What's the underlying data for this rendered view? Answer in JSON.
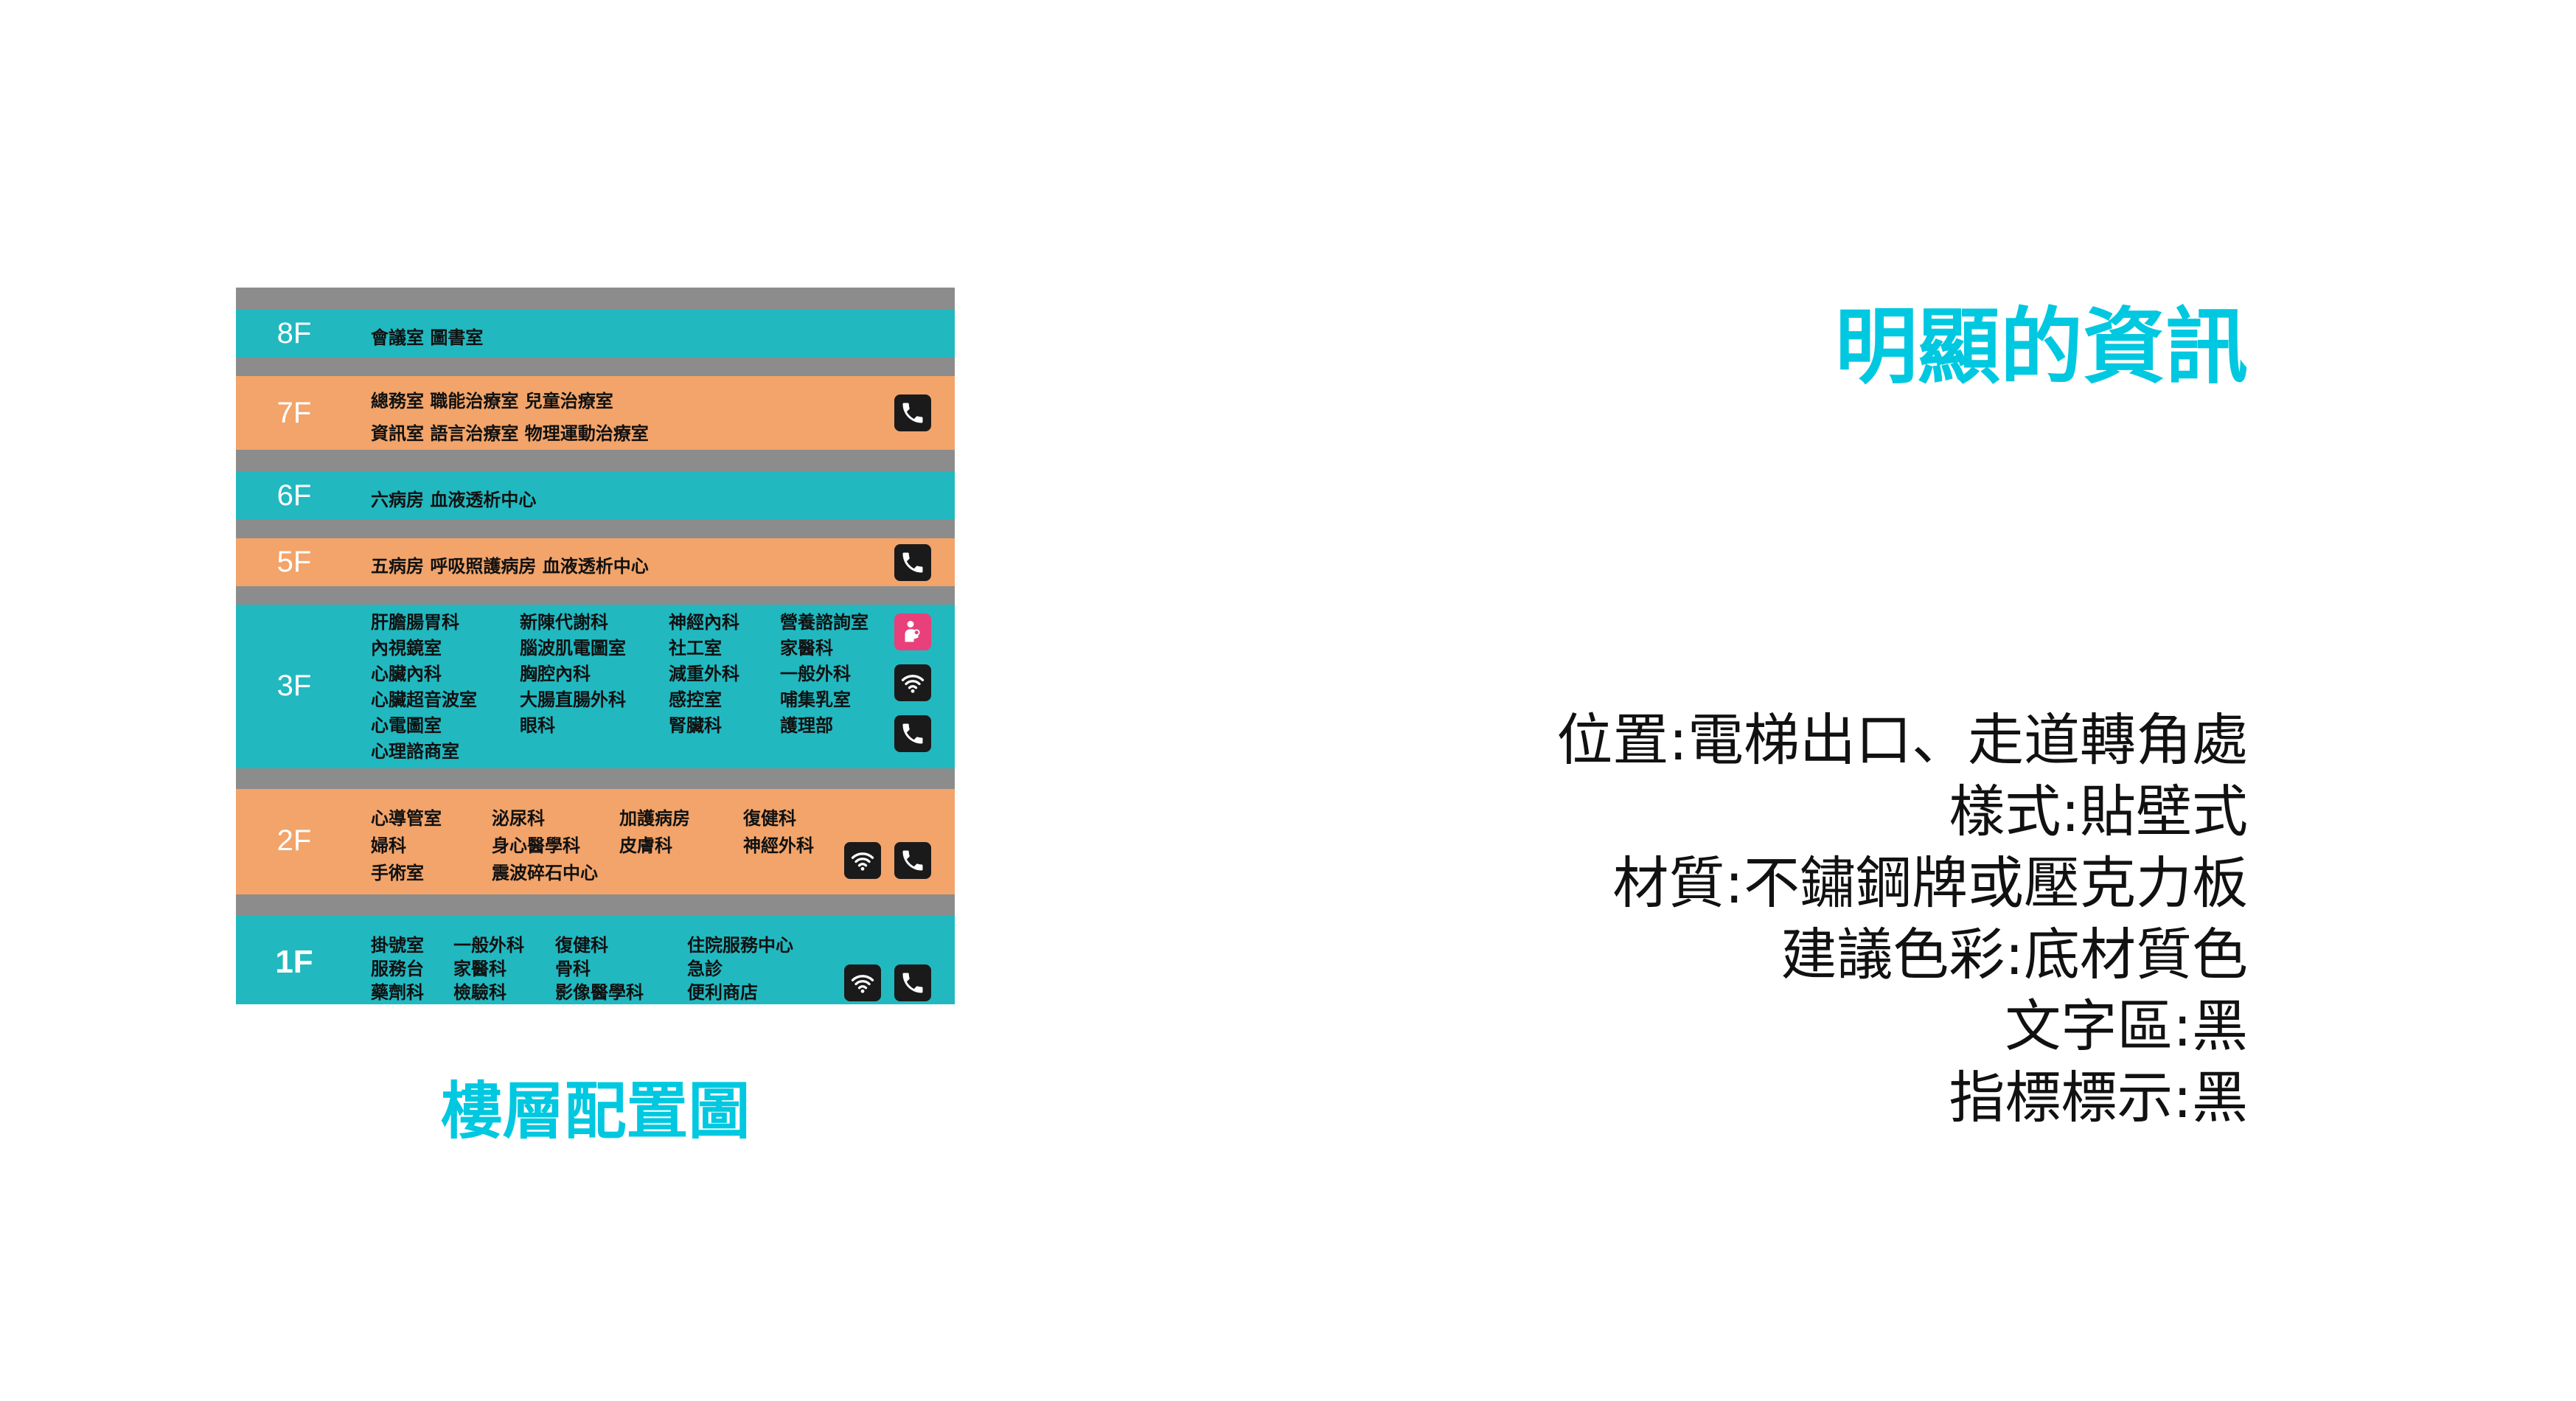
{
  "title": "明顯的資訊",
  "board_caption": "樓層配置圖",
  "specs": [
    "位置:電梯出口、走道轉角處",
    "樣式:貼壁式",
    "材質:不鏽鋼牌或壓克力板",
    "建議色彩:底材質色",
    "文字區:黑",
    "指標標示:黑"
  ],
  "colors": {
    "teal": "#22b8c0",
    "orange": "#f2a46a",
    "gray": "#8c8c8c",
    "accent": "#00c8e0",
    "icon_bg": "#1a1a1a",
    "nursing_icon_bg": "#e8407a"
  },
  "board": {
    "floors": [
      {
        "label": "8F",
        "color": "teal",
        "rows": [
          [
            "會議室 圖書室"
          ]
        ],
        "icons": []
      },
      {
        "label": "7F",
        "color": "orange",
        "rows": [
          [
            "總務室 職能治療室 兒童治療室"
          ],
          [
            "資訊室 語言治療室 物理運動治療室"
          ]
        ],
        "icons": [
          "phone-icon"
        ]
      },
      {
        "label": "6F",
        "color": "teal",
        "rows": [
          [
            "六病房 血液透析中心"
          ]
        ],
        "icons": []
      },
      {
        "label": "5F",
        "color": "orange",
        "rows": [
          [
            "五病房 呼吸照護病房 血液透析中心"
          ]
        ],
        "icons": [
          "phone-icon"
        ]
      },
      {
        "label": "3F",
        "color": "teal",
        "rows": [
          [
            "肝膽腸胃科",
            "新陳代謝科",
            "神經內科",
            "營養諮詢室"
          ],
          [
            "內視鏡室",
            "腦波肌電圖室",
            "社工室",
            "家醫科"
          ],
          [
            "心臟內科",
            "胸腔內科",
            "減重外科",
            "一般外科"
          ],
          [
            "心臟超音波室",
            "大腸直腸外科",
            "感控室",
            "哺集乳室"
          ],
          [
            "心電圖室",
            "眼科",
            "腎臟科",
            "護理部"
          ],
          [
            "心理諮商室"
          ]
        ],
        "icons": [
          "nursing-room-icon",
          "wifi-icon",
          "phone-icon"
        ]
      },
      {
        "label": "2F",
        "color": "orange",
        "rows": [
          [
            "心導管室",
            "泌尿科",
            "加護病房",
            "復健科"
          ],
          [
            "婦科",
            "身心醫學科",
            "皮膚科",
            "神經外科"
          ],
          [
            "手術室",
            "震波碎石中心"
          ]
        ],
        "icons": [
          "wifi-icon",
          "phone-icon"
        ]
      },
      {
        "label": "1F",
        "color": "teal",
        "rows": [
          [
            "掛號室",
            "一般外科",
            "復健科",
            "住院服務中心"
          ],
          [
            "服務台",
            "家醫科",
            "骨科",
            "急診"
          ],
          [
            "藥劑科",
            "檢驗科",
            "影像醫學科",
            "便利商店"
          ]
        ],
        "icons": [
          "wifi-icon",
          "phone-icon"
        ]
      }
    ]
  }
}
